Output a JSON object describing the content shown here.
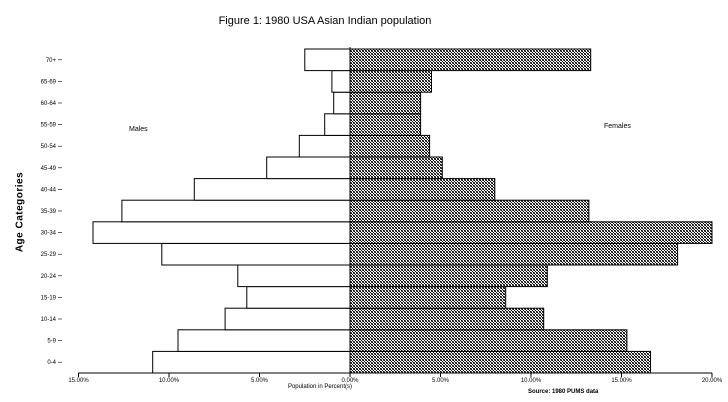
{
  "chart_data": {
    "type": "bar",
    "orientation": "horizontal",
    "title": "Figure 1: 1980 USA Asian Indian population",
    "xlabel": "Population in Percent(s)",
    "ylabel": "Age Categories",
    "source": "Source: 1980 PUMS data",
    "categories": [
      "0-4",
      "5-9",
      "10-14",
      "15-19",
      "20-24",
      "25-29",
      "30-34",
      "35-39",
      "40-44",
      "45-49",
      "50-54",
      "55-59",
      "60-64",
      "65-69",
      "70+"
    ],
    "series": [
      {
        "name": "Males",
        "values": [
          10.9,
          9.5,
          6.9,
          5.7,
          6.2,
          10.4,
          14.2,
          12.6,
          8.6,
          4.6,
          2.8,
          1.4,
          0.9,
          1.0,
          2.5
        ]
      },
      {
        "name": "Females",
        "values": [
          16.6,
          15.3,
          10.7,
          8.6,
          10.9,
          18.1,
          20.0,
          13.2,
          8.0,
          5.1,
          4.4,
          3.9,
          3.9,
          4.5,
          13.3
        ]
      }
    ],
    "xlim": [
      -15,
      20
    ],
    "x_tick_labels": [
      "15.00%",
      "10.00%",
      "5.00%",
      "0.00%",
      "5.00%",
      "10.00%",
      "15.00%",
      "20.00%"
    ],
    "x_tick_values": [
      -15,
      -10,
      -5,
      0,
      5,
      10,
      15,
      20
    ],
    "colors": {
      "males": "#ffffff",
      "females": "#8c8c8c",
      "stroke": "#000000"
    },
    "grid": false
  }
}
